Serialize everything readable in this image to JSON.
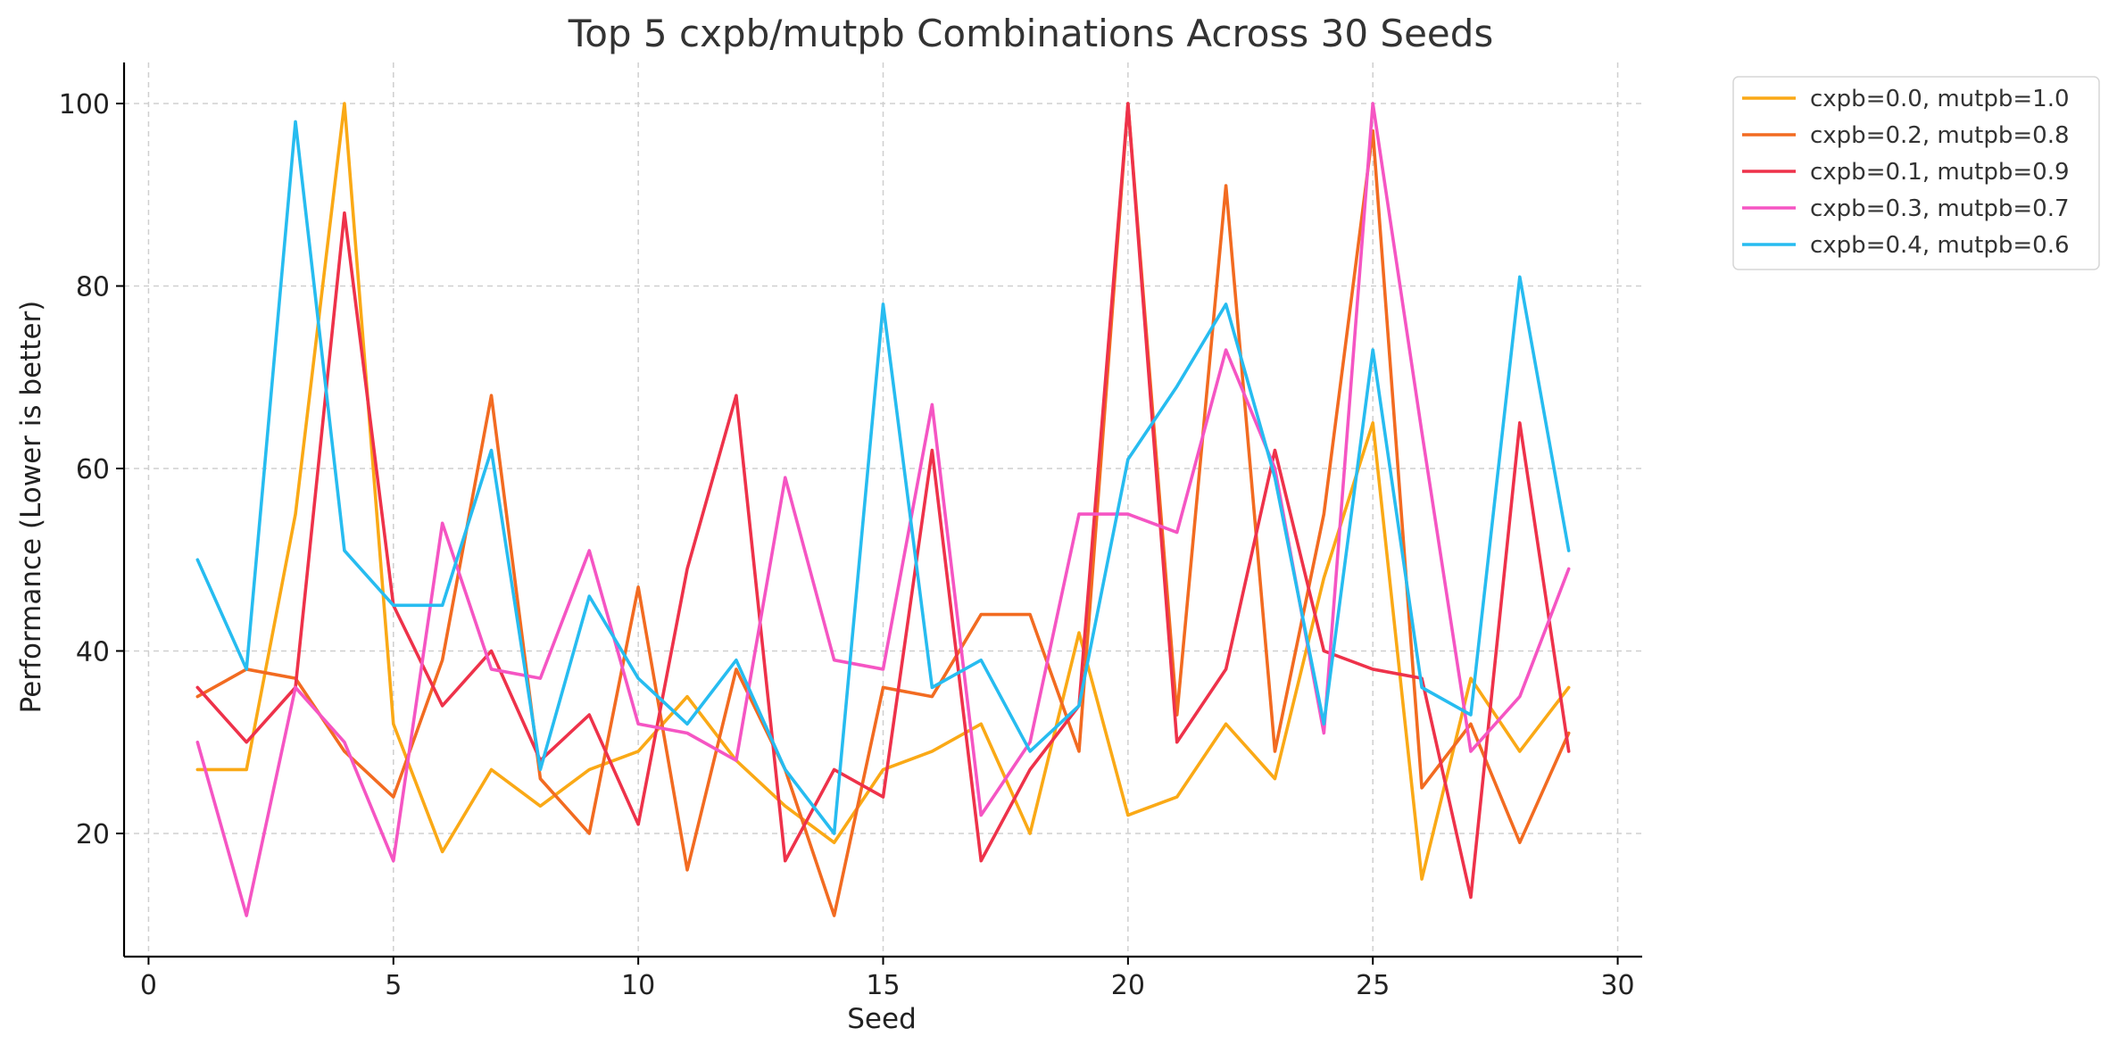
{
  "chart_data": {
    "type": "line",
    "title": "Top 5 cxpb/mutpb Combinations Across 30 Seeds",
    "xlabel": "Seed",
    "ylabel": "Performance (Lower is better)",
    "xlim": [
      -0.5,
      30.5
    ],
    "ylim": [
      6.5,
      104.5
    ],
    "xticks": [
      0,
      5,
      10,
      15,
      20,
      25,
      30
    ],
    "yticks": [
      20,
      40,
      60,
      80,
      100
    ],
    "grid": true,
    "legend_position": "outside-top-right",
    "x": [
      1,
      2,
      3,
      4,
      5,
      6,
      7,
      8,
      9,
      10,
      11,
      12,
      13,
      14,
      15,
      16,
      17,
      18,
      19,
      20,
      21,
      22,
      23,
      24,
      25,
      26,
      27,
      28,
      29
    ],
    "series": [
      {
        "name": "cxpb=0.0, mutpb=1.0",
        "color": "#FAA916",
        "values": [
          27,
          27,
          55,
          100,
          32,
          18,
          27,
          23,
          27,
          29,
          35,
          28,
          23,
          19,
          27,
          29,
          32,
          20,
          42,
          22,
          24,
          32,
          26,
          48,
          65,
          15,
          37,
          29,
          36
        ]
      },
      {
        "name": "cxpb=0.2, mutpb=0.8",
        "color": "#F26B21",
        "values": [
          35,
          38,
          37,
          29,
          24,
          39,
          68,
          26,
          20,
          47,
          16,
          38,
          27,
          11,
          36,
          35,
          44,
          44,
          29,
          100,
          33,
          91,
          29,
          55,
          97,
          25,
          32,
          19,
          31
        ]
      },
      {
        "name": "cxpb=0.1, mutpb=0.9",
        "color": "#EE324A",
        "values": [
          36,
          30,
          36,
          88,
          45,
          34,
          40,
          28,
          33,
          21,
          49,
          68,
          17,
          27,
          24,
          62,
          17,
          27,
          34,
          100,
          30,
          38,
          62,
          40,
          38,
          37,
          13,
          65,
          29
        ]
      },
      {
        "name": "cxpb=0.3, mutpb=0.7",
        "color": "#F555C3",
        "values": [
          30,
          11,
          36,
          30,
          17,
          54,
          38,
          37,
          51,
          32,
          31,
          28,
          59,
          39,
          38,
          67,
          22,
          30,
          55,
          55,
          53,
          73,
          60,
          31,
          100,
          64,
          29,
          35,
          49
        ]
      },
      {
        "name": "cxpb=0.4, mutpb=0.6",
        "color": "#27BCF0",
        "values": [
          50,
          38,
          98,
          51,
          45,
          45,
          62,
          27,
          46,
          37,
          32,
          39,
          27,
          20,
          78,
          36,
          39,
          29,
          34,
          61,
          69,
          78,
          59,
          32,
          73,
          36,
          33,
          81,
          51
        ]
      }
    ]
  }
}
